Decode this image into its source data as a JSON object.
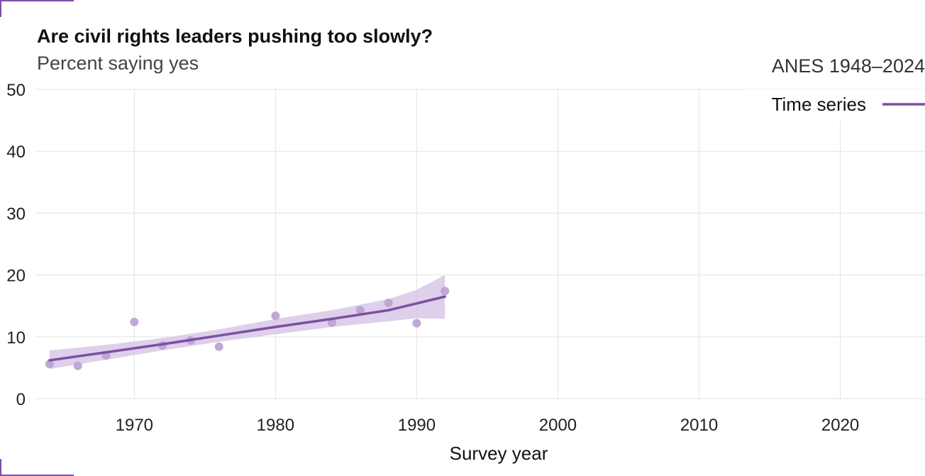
{
  "header": {
    "title": "Are civil rights leaders pushing too slowly?",
    "subtitle": "Percent saying yes",
    "source": "ANES 1948–2024"
  },
  "colors": {
    "accent": "#7b4fa3",
    "band": "#d8c7e6",
    "points": "#b9a0d1",
    "grid": "#e3e3e3"
  },
  "chart_data": {
    "type": "line",
    "xlabel": "Survey year",
    "ylabel": "",
    "xlim": [
      1963,
      2026
    ],
    "ylim": [
      0,
      50
    ],
    "x_ticks": [
      1970,
      1980,
      1990,
      2000,
      2010,
      2020
    ],
    "y_ticks": [
      0,
      10,
      20,
      30,
      40,
      50
    ],
    "grid": true,
    "legend": {
      "position": "top-right",
      "entries": [
        "Time series"
      ]
    },
    "series": [
      {
        "name": "Time series",
        "points": [
          {
            "x": 1964,
            "y": 5.6
          },
          {
            "x": 1966,
            "y": 5.3
          },
          {
            "x": 1968,
            "y": 7.0
          },
          {
            "x": 1970,
            "y": 12.4
          },
          {
            "x": 1972,
            "y": 8.6
          },
          {
            "x": 1974,
            "y": 9.4
          },
          {
            "x": 1976,
            "y": 8.4
          },
          {
            "x": 1980,
            "y": 13.4
          },
          {
            "x": 1984,
            "y": 12.3
          },
          {
            "x": 1986,
            "y": 14.3
          },
          {
            "x": 1988,
            "y": 15.5
          },
          {
            "x": 1990,
            "y": 12.2
          },
          {
            "x": 1992,
            "y": 17.4
          }
        ],
        "trend": [
          {
            "x": 1964,
            "y": 6.2
          },
          {
            "x": 1968,
            "y": 7.5
          },
          {
            "x": 1972,
            "y": 8.8
          },
          {
            "x": 1976,
            "y": 10.2
          },
          {
            "x": 1980,
            "y": 11.6
          },
          {
            "x": 1984,
            "y": 12.9
          },
          {
            "x": 1988,
            "y": 14.3
          },
          {
            "x": 1992,
            "y": 16.5
          }
        ],
        "band_upper": [
          {
            "x": 1964,
            "y": 7.8
          },
          {
            "x": 1968,
            "y": 8.7
          },
          {
            "x": 1972,
            "y": 9.8
          },
          {
            "x": 1976,
            "y": 11.2
          },
          {
            "x": 1980,
            "y": 12.9
          },
          {
            "x": 1984,
            "y": 14.3
          },
          {
            "x": 1988,
            "y": 16.1
          },
          {
            "x": 1990,
            "y": 17.6
          },
          {
            "x": 1992,
            "y": 20.0
          }
        ],
        "band_lower": [
          {
            "x": 1964,
            "y": 4.8
          },
          {
            "x": 1968,
            "y": 6.3
          },
          {
            "x": 1972,
            "y": 7.8
          },
          {
            "x": 1976,
            "y": 9.2
          },
          {
            "x": 1980,
            "y": 10.4
          },
          {
            "x": 1984,
            "y": 11.6
          },
          {
            "x": 1988,
            "y": 12.5
          },
          {
            "x": 1990,
            "y": 13.0
          },
          {
            "x": 1992,
            "y": 12.9
          }
        ]
      }
    ]
  }
}
